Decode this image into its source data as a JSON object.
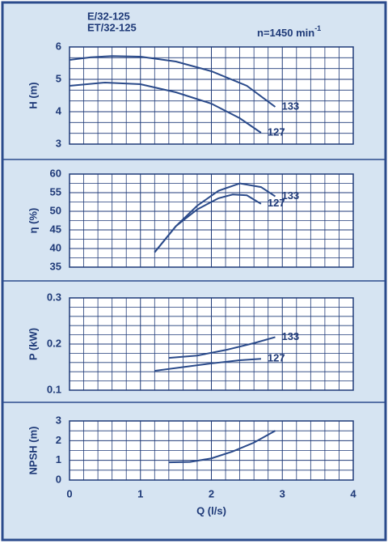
{
  "chart_data": [
    {
      "type": "line",
      "title": "E/32-125",
      "subtitle": "ET/32-125",
      "annotation": {
        "text": "n=1450 min",
        "superscript": "-1"
      },
      "ylabel": "H (m)",
      "xlim": [
        0,
        4
      ],
      "ylim": [
        3,
        6
      ],
      "yticks": [
        3,
        4,
        5,
        6
      ],
      "grid": true,
      "series": [
        {
          "name": "133",
          "color": "#2a4a8a",
          "x": [
            0,
            0.3,
            0.6,
            1.0,
            1.5,
            2.0,
            2.5,
            2.9
          ],
          "values": [
            5.6,
            5.68,
            5.72,
            5.7,
            5.55,
            5.25,
            4.8,
            4.15
          ]
        },
        {
          "name": "127",
          "color": "#2a4a8a",
          "x": [
            0,
            0.5,
            1.0,
            1.5,
            2.0,
            2.4,
            2.7
          ],
          "values": [
            4.8,
            4.9,
            4.85,
            4.6,
            4.25,
            3.8,
            3.35
          ]
        }
      ]
    },
    {
      "type": "line",
      "ylabel": "η (%)",
      "xlim": [
        0,
        4
      ],
      "ylim": [
        35,
        60
      ],
      "yticks": [
        35,
        40,
        45,
        50,
        55,
        60
      ],
      "grid": true,
      "series": [
        {
          "name": "133",
          "color": "#2a4a8a",
          "x": [
            1.2,
            1.5,
            1.8,
            2.1,
            2.4,
            2.7,
            2.9
          ],
          "values": [
            39,
            46,
            51.5,
            55.5,
            57.5,
            56.5,
            54
          ]
        },
        {
          "name": "127",
          "color": "#2a4a8a",
          "x": [
            1.2,
            1.5,
            1.8,
            2.1,
            2.3,
            2.5,
            2.7
          ],
          "values": [
            39,
            46,
            50.5,
            53.5,
            54.5,
            54.3,
            52
          ]
        }
      ]
    },
    {
      "type": "line",
      "ylabel": "P (kW)",
      "xlim": [
        0,
        4
      ],
      "ylim": [
        0.1,
        0.3
      ],
      "yticks": [
        0.1,
        0.2,
        0.3
      ],
      "grid": true,
      "series": [
        {
          "name": "133",
          "color": "#2a4a8a",
          "x": [
            1.4,
            1.8,
            2.2,
            2.6,
            2.9
          ],
          "values": [
            0.17,
            0.175,
            0.187,
            0.202,
            0.215
          ]
        },
        {
          "name": "127",
          "color": "#2a4a8a",
          "x": [
            1.2,
            1.6,
            2.0,
            2.4,
            2.7
          ],
          "values": [
            0.142,
            0.15,
            0.158,
            0.165,
            0.168
          ]
        }
      ]
    },
    {
      "type": "line",
      "ylabel": "NPSH (m)",
      "xlabel": "Q (l/s)",
      "xlim": [
        0,
        4
      ],
      "xticks": [
        0,
        1,
        2,
        3,
        4
      ],
      "ylim": [
        0,
        3
      ],
      "yticks": [
        0,
        1,
        2,
        3
      ],
      "grid": true,
      "series": [
        {
          "color": "#2a4a8a",
          "x": [
            1.4,
            1.7,
            2.0,
            2.3,
            2.6,
            2.9
          ],
          "values": [
            0.9,
            0.92,
            1.1,
            1.45,
            1.9,
            2.5
          ]
        }
      ]
    }
  ]
}
